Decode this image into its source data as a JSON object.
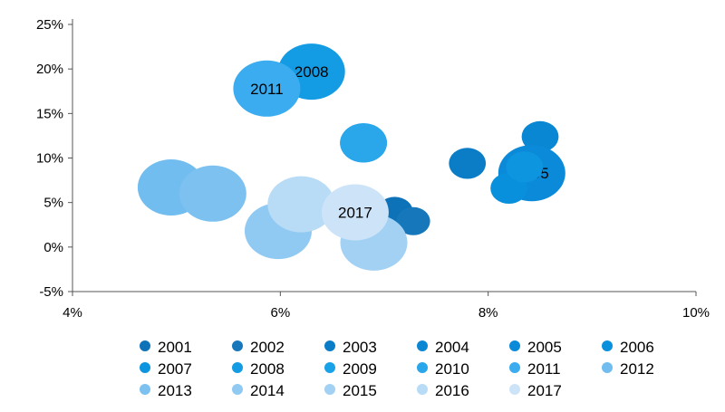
{
  "chart_data": {
    "type": "scatter",
    "subtype": "bubble",
    "xlim": [
      4,
      10
    ],
    "ylim": [
      -5,
      25
    ],
    "x_ticks": [
      "4%",
      "6%",
      "8%",
      "10%"
    ],
    "x_tick_values": [
      4,
      6,
      8,
      10
    ],
    "y_ticks": [
      "25%",
      "20%",
      "15%",
      "10%",
      "5%",
      "0%",
      "-5%"
    ],
    "y_tick_values": [
      25,
      20,
      15,
      10,
      5,
      0,
      -5
    ],
    "legend_position": "bottom",
    "grid": false,
    "series": [
      {
        "name": "2001",
        "color": "#0e72b8",
        "x": 7.1,
        "y": 3.9,
        "size": 0.55,
        "label": ""
      },
      {
        "name": "2002",
        "color": "#1677ba",
        "x": 7.28,
        "y": 2.9,
        "size": 0.5,
        "label": ""
      },
      {
        "name": "2003",
        "color": "#0b7dc7",
        "x": 7.8,
        "y": 9.4,
        "size": 0.55,
        "label": ""
      },
      {
        "name": "2004",
        "color": "#0a87d3",
        "x": 8.5,
        "y": 12.4,
        "size": 0.55,
        "label": ""
      },
      {
        "name": "2005",
        "color": "#0a8ad8",
        "x": 8.42,
        "y": 8.3,
        "size": 1.0,
        "label": "2005"
      },
      {
        "name": "2006",
        "color": "#0990dc",
        "x": 8.2,
        "y": 6.6,
        "size": 0.55,
        "label": ""
      },
      {
        "name": "2007",
        "color": "#0e95df",
        "x": 8.35,
        "y": 9.0,
        "size": 0.55,
        "label": ""
      },
      {
        "name": "2008",
        "color": "#139ce4",
        "x": 6.3,
        "y": 19.7,
        "size": 1.0,
        "label": "2008"
      },
      {
        "name": "2009",
        "color": "#1aa2e8",
        "x": 6.8,
        "y": 11.7,
        "size": 0.7,
        "label": ""
      },
      {
        "name": "2010",
        "color": "#2aa6eb",
        "x": 6.8,
        "y": 11.7,
        "size": 0.7,
        "label": ""
      },
      {
        "name": "2011",
        "color": "#3aacef",
        "x": 5.87,
        "y": 17.8,
        "size": 1.0,
        "label": "2011"
      },
      {
        "name": "2012",
        "color": "#72bdf0",
        "x": 4.95,
        "y": 6.7,
        "size": 1.0,
        "label": ""
      },
      {
        "name": "2013",
        "color": "#7cc1f0",
        "x": 5.35,
        "y": 6.0,
        "size": 1.0,
        "label": ""
      },
      {
        "name": "2014",
        "color": "#90c9f2",
        "x": 5.98,
        "y": 1.8,
        "size": 1.0,
        "label": ""
      },
      {
        "name": "2015",
        "color": "#a3d1f4",
        "x": 6.9,
        "y": 0.5,
        "size": 1.0,
        "label": ""
      },
      {
        "name": "2016",
        "color": "#b8dbf6",
        "x": 6.2,
        "y": 4.8,
        "size": 1.0,
        "label": ""
      },
      {
        "name": "2017",
        "color": "#cde4f8",
        "x": 6.72,
        "y": 3.9,
        "size": 1.0,
        "label": "2017"
      }
    ]
  }
}
